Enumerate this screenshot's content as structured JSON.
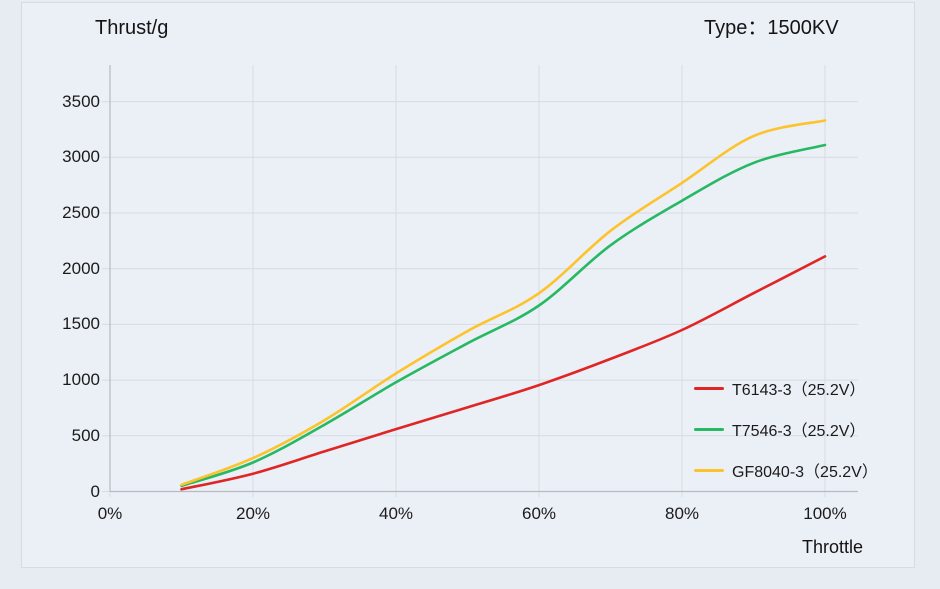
{
  "header": {
    "y_axis_title": "Thrust/g",
    "type_label": "Type：1500KV"
  },
  "x_axis": {
    "title": "Throttle",
    "tick_labels": [
      "0%",
      "20%",
      "40%",
      "60%",
      "80%",
      "100%"
    ],
    "tick_values": [
      0,
      20,
      40,
      60,
      80,
      100
    ]
  },
  "y_axis": {
    "tick_values": [
      0,
      500,
      1000,
      1500,
      2000,
      2500,
      3000,
      3500
    ]
  },
  "legend": [
    {
      "label": "T6143-3（25.2V）",
      "color": "#e02525"
    },
    {
      "label": "T7546-3（25.2V）",
      "color": "#26b862"
    },
    {
      "label": "GF8040-3（25.2V）",
      "color": "#fcc32c"
    }
  ],
  "chart_data": {
    "type": "line",
    "title": "Thrust/g",
    "xlabel": "Throttle",
    "ylabel": "Thrust/g",
    "x": [
      10,
      20,
      30,
      40,
      50,
      60,
      70,
      80,
      90,
      100
    ],
    "series": [
      {
        "name": "T6143-3（25.2V）",
        "color": "#e02525",
        "values": [
          20,
          160,
          360,
          560,
          755,
          955,
          1190,
          1450,
          1780,
          2110
        ]
      },
      {
        "name": "T7546-3（25.2V）",
        "color": "#26b862",
        "values": [
          50,
          260,
          600,
          980,
          1330,
          1670,
          2210,
          2610,
          2950,
          3110
        ]
      },
      {
        "name": "GF8040-3（25.2V）",
        "color": "#fcc32c",
        "values": [
          60,
          300,
          640,
          1060,
          1440,
          1780,
          2340,
          2770,
          3190,
          3330
        ]
      }
    ],
    "xlim": [
      0,
      104.5
    ],
    "ylim": [
      0,
      3830
    ],
    "x_tick_labels": [
      "0%",
      "20%",
      "40%",
      "60%",
      "80%",
      "100%"
    ],
    "y_ticks": [
      0,
      500,
      1000,
      1500,
      2000,
      2500,
      3000,
      3500
    ],
    "grid": true,
    "legend_position": "inside-right"
  },
  "colors": {
    "background": "#e7ecf3",
    "panel": "#ebeff6",
    "panel_border": "#d5dbe1",
    "gridline": "#d8dce1",
    "axis": "#b6bbc1",
    "text": "#1b1b1b"
  }
}
